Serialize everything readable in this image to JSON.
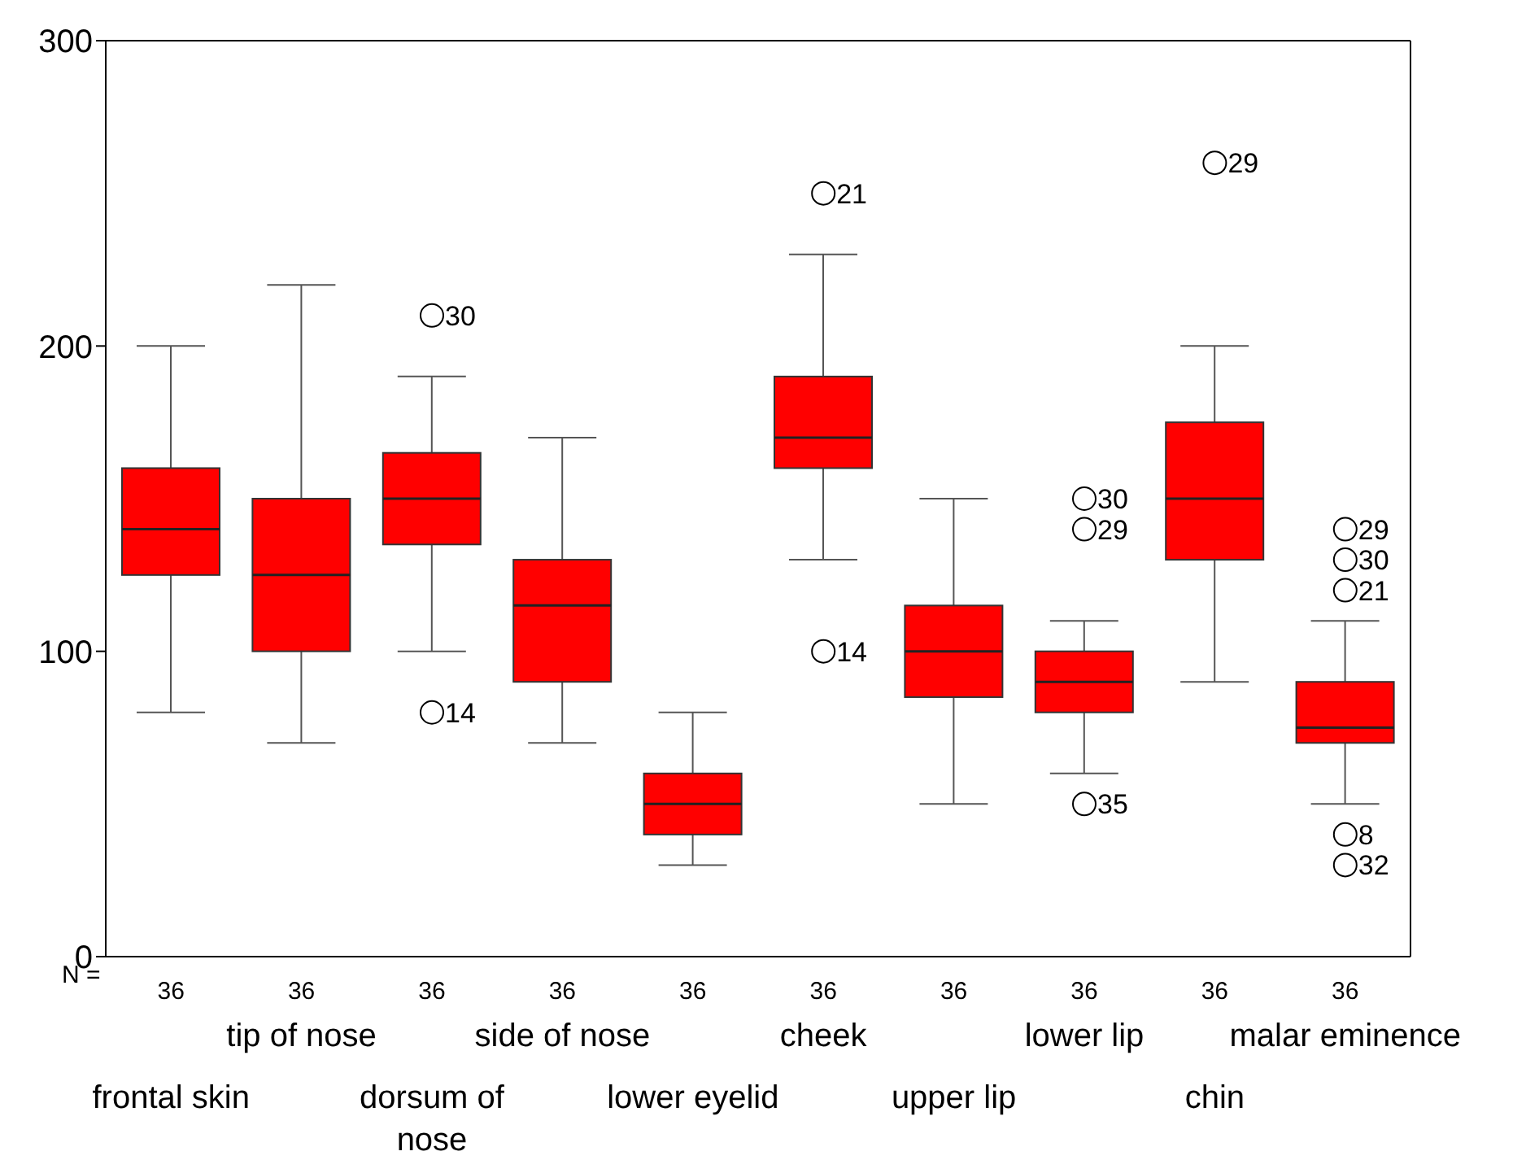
{
  "chart_data": {
    "type": "box",
    "color": "#ff0000",
    "marker": "circle",
    "categories": [
      "frontal skin",
      "tip of nose",
      "dorsum of nose",
      "side of nose",
      "lower eyelid",
      "cheek",
      "upper lip",
      "lower lip",
      "chin",
      "malar eminence"
    ],
    "boxes": [
      {
        "low": 80,
        "q1": 125,
        "median": 140,
        "q3": 160,
        "high": 200
      },
      {
        "low": 70,
        "q1": 100,
        "median": 125,
        "q3": 150,
        "high": 220
      },
      {
        "low": 100,
        "q1": 135,
        "median": 150,
        "q3": 165,
        "high": 190,
        "outliers": [
          210,
          80
        ]
      },
      {
        "low": 70,
        "q1": 90,
        "median": 115,
        "q3": 130,
        "high": 170
      },
      {
        "low": 30,
        "q1": 40,
        "median": 50,
        "q3": 60,
        "high": 80
      },
      {
        "low": 130,
        "q1": 160,
        "median": 170,
        "q3": 190,
        "high": 230,
        "outliers": [
          250,
          100
        ]
      },
      {
        "low": 50,
        "q1": 85,
        "median": 100,
        "q3": 115,
        "high": 150
      },
      {
        "low": 60,
        "q1": 80,
        "median": 90,
        "q3": 100,
        "high": 110,
        "outliers": [
          150,
          140,
          50
        ]
      },
      {
        "low": 90,
        "q1": 130,
        "median": 150,
        "q3": 175,
        "high": 200,
        "outliers": [
          260
        ]
      },
      {
        "low": 50,
        "q1": 70,
        "median": 75,
        "q3": 90,
        "high": 110,
        "outliers": [
          140,
          130,
          120,
          40,
          30
        ]
      }
    ],
    "ylim": [
      0,
      300
    ],
    "yticks": [
      0,
      100,
      200,
      300
    ],
    "annotations": [
      "N =",
      "36",
      "36",
      "36",
      "36",
      "36",
      "36",
      "36",
      "36",
      "36",
      "36",
      "30",
      "14",
      "21",
      "14",
      "30",
      "29",
      "35",
      "29",
      "29",
      "30",
      "21",
      "8",
      "32"
    ]
  }
}
